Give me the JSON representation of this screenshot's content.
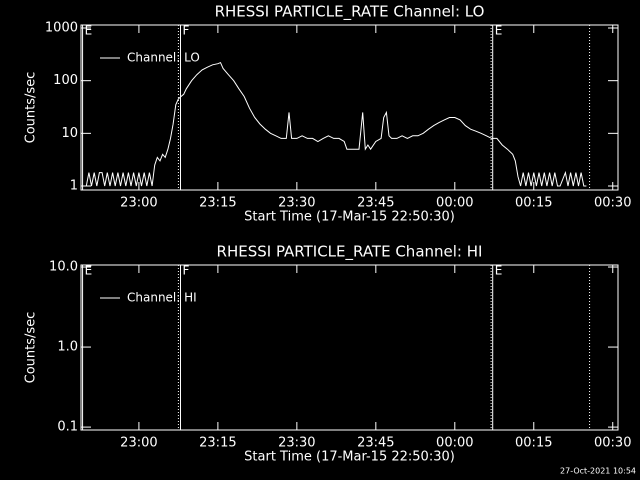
{
  "chart_data": [
    {
      "type": "line",
      "title": "RHESSI PARTICLE_RATE Channel: LO",
      "x_label": "Start Time (17-Mar-15 22:50:30)",
      "y_label": "Counts/sec",
      "log_y": true,
      "xlim": [
        49,
        151
      ],
      "ylim": [
        0.84,
        1140
      ],
      "xticks": [
        {
          "value": 60,
          "label": "23:00"
        },
        {
          "value": 75,
          "label": "23:15"
        },
        {
          "value": 90,
          "label": "23:30"
        },
        {
          "value": 105,
          "label": "23:45"
        },
        {
          "value": 120,
          "label": "00:00"
        },
        {
          "value": 135,
          "label": "00:15"
        },
        {
          "value": 150,
          "label": "00:30"
        }
      ],
      "yticks": [
        1,
        10,
        100,
        1000
      ],
      "markers": [
        {
          "x": 49.3,
          "style": "solid",
          "label": "E"
        },
        {
          "x": 67.5,
          "style": "dotted"
        },
        {
          "x": 67.9,
          "style": "solid",
          "label": "F"
        },
        {
          "x": 126.9,
          "style": "dotted"
        },
        {
          "x": 127.2,
          "style": "solid",
          "label": "E"
        },
        {
          "x": 145.6,
          "style": "dotted"
        }
      ],
      "series": [
        {
          "name": "Channel: LO",
          "color": "#ffffff",
          "x": [
            50,
            50.5,
            51,
            51.5,
            52,
            52.5,
            53,
            53.5,
            54,
            54.5,
            55,
            55.5,
            56,
            56.5,
            57,
            57.5,
            58,
            58.5,
            59,
            59.5,
            60,
            60.5,
            61,
            61.5,
            62,
            62.5,
            63,
            63.5,
            64,
            64.5,
            65,
            65.5,
            66,
            66.5,
            67,
            67.5,
            68,
            68.5,
            69,
            70,
            71,
            72,
            73,
            74,
            75,
            75.5,
            76,
            77,
            78,
            79,
            80,
            81,
            82,
            83,
            84,
            85,
            86,
            87,
            88,
            88.5,
            89,
            90,
            91,
            92,
            93,
            94,
            95,
            96,
            97,
            98,
            99,
            99.5,
            100,
            101,
            101.8,
            102.5,
            103,
            103.5,
            104,
            105,
            106,
            106.5,
            107,
            107.5,
            108,
            109,
            110,
            111,
            112,
            113,
            114,
            115,
            116,
            117,
            118,
            119,
            120,
            121,
            122,
            123,
            124,
            125,
            126,
            127,
            128,
            129,
            130,
            131,
            131.5,
            132,
            132.5,
            133,
            133.5,
            134,
            134.5,
            135,
            135.5,
            136,
            136.5,
            137,
            137.5,
            138,
            138.5,
            139,
            139.5,
            140,
            141,
            141.5,
            142,
            142.5,
            143,
            143.5,
            144,
            144.5,
            145
          ],
          "values": [
            1,
            1.8,
            1,
            1.8,
            1,
            1.8,
            1.8,
            1,
            1.8,
            1,
            1.8,
            1,
            1.8,
            1,
            1.8,
            1,
            1.8,
            1,
            1.8,
            1,
            1.8,
            1,
            1.8,
            1,
            1.8,
            1,
            2.5,
            3.5,
            3,
            4,
            3.5,
            5,
            8,
            15,
            35,
            45,
            50,
            55,
            70,
            100,
            130,
            160,
            180,
            200,
            210,
            220,
            170,
            130,
            100,
            70,
            50,
            30,
            20,
            15,
            12,
            10,
            9,
            8,
            8,
            25,
            8,
            8,
            9,
            8,
            8,
            7,
            8,
            9,
            8,
            8,
            7,
            5,
            5,
            5,
            5,
            25,
            5,
            6,
            5,
            7,
            8,
            20,
            25,
            9,
            8,
            8,
            9,
            8,
            9,
            9,
            10,
            12,
            14,
            16,
            18,
            20,
            20,
            18,
            14,
            12,
            11,
            10,
            9,
            8,
            8,
            6,
            5,
            4,
            3,
            1.5,
            1,
            1.8,
            1,
            1.8,
            1,
            1.8,
            1,
            1.8,
            1,
            1.8,
            1,
            1.8,
            1,
            1.8,
            1,
            1,
            1.8,
            1,
            1.8,
            1,
            1.8,
            1,
            1.8,
            1,
            1
          ]
        }
      ]
    },
    {
      "type": "line",
      "title": "RHESSI PARTICLE_RATE Channel: HI",
      "x_label": "Start Time (17-Mar-15 22:50:30)",
      "y_label": "Counts/sec",
      "log_y": true,
      "xlim": [
        49,
        151
      ],
      "ylim": [
        0.092,
        10.6
      ],
      "xticks": [
        {
          "value": 60,
          "label": "23:00"
        },
        {
          "value": 75,
          "label": "23:15"
        },
        {
          "value": 90,
          "label": "23:30"
        },
        {
          "value": 105,
          "label": "23:45"
        },
        {
          "value": 120,
          "label": "00:00"
        },
        {
          "value": 135,
          "label": "00:15"
        },
        {
          "value": 150,
          "label": "00:30"
        }
      ],
      "yticks": [
        {
          "value": 10,
          "label": "10.0"
        },
        {
          "value": 1,
          "label": "1.0"
        },
        0.1
      ],
      "markers": [
        {
          "x": 49.3,
          "style": "solid",
          "label": "E"
        },
        {
          "x": 67.5,
          "style": "dotted"
        },
        {
          "x": 67.9,
          "style": "solid",
          "label": "F"
        },
        {
          "x": 126.9,
          "style": "dotted"
        },
        {
          "x": 127.2,
          "style": "solid",
          "label": "E"
        },
        {
          "x": 145.6,
          "style": "dotted"
        }
      ],
      "series": [
        {
          "name": "Channel: HI",
          "color": "#ffffff",
          "x": [],
          "values": []
        }
      ]
    }
  ],
  "footer": "27-Oct-2021 10:54"
}
